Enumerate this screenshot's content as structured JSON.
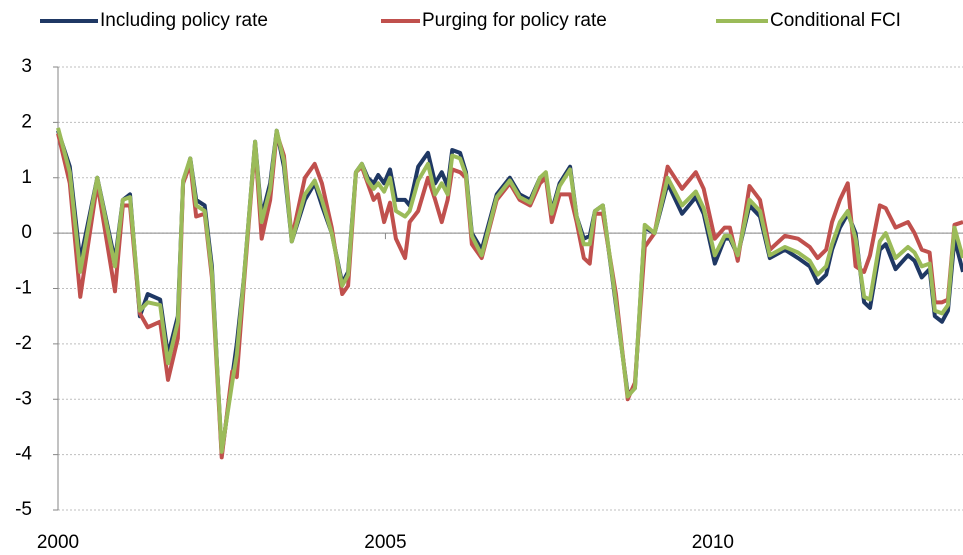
{
  "chart_data": {
    "type": "line",
    "x": [
      2000.0,
      2000.18,
      2000.34,
      2000.6,
      2000.87,
      2000.99,
      2001.1,
      2001.25,
      2001.37,
      2001.56,
      2001.68,
      2001.83,
      2001.91,
      2002.02,
      2002.11,
      2002.24,
      2002.35,
      2002.5,
      2002.66,
      2002.73,
      2002.84,
      2003.01,
      2003.11,
      2003.24,
      2003.34,
      2003.45,
      2003.57,
      2003.77,
      2003.92,
      2004.03,
      2004.18,
      2004.34,
      2004.43,
      2004.55,
      2004.64,
      2004.73,
      2004.82,
      2004.89,
      2004.98,
      2005.07,
      2005.16,
      2005.3,
      2005.37,
      2005.5,
      2005.65,
      2005.76,
      2005.86,
      2005.95,
      2006.02,
      2006.14,
      2006.23,
      2006.32,
      2006.47,
      2006.7,
      2006.9,
      2007.05,
      2007.21,
      2007.36,
      2007.45,
      2007.54,
      2007.66,
      2007.82,
      2007.92,
      2008.03,
      2008.12,
      2008.2,
      2008.32,
      2008.52,
      2008.7,
      2008.81,
      2008.96,
      2009.11,
      2009.31,
      2009.53,
      2009.74,
      2009.86,
      2010.03,
      2010.18,
      2010.26,
      2010.38,
      2010.56,
      2010.72,
      2010.87,
      2011.1,
      2011.3,
      2011.48,
      2011.6,
      2011.73,
      2011.82,
      2011.94,
      2012.06,
      2012.18,
      2012.31,
      2012.4,
      2012.55,
      2012.64,
      2012.79,
      2012.98,
      2013.08,
      2013.19,
      2013.31,
      2013.39,
      2013.5,
      2013.59,
      2013.69,
      2013.82
    ],
    "series": [
      {
        "name": "Including policy rate",
        "color": "#1f3864",
        "values": [
          1.85,
          1.2,
          -0.5,
          1.0,
          -0.5,
          0.6,
          0.7,
          -1.5,
          -1.1,
          -1.2,
          -2.2,
          -1.5,
          0.9,
          1.35,
          0.6,
          0.5,
          -0.6,
          -4.0,
          -2.6,
          -2.0,
          -0.8,
          1.65,
          0.3,
          0.9,
          1.85,
          1.2,
          -0.15,
          0.6,
          0.9,
          0.5,
          0.0,
          -0.9,
          -0.7,
          1.1,
          1.25,
          1.0,
          0.9,
          1.05,
          0.9,
          1.15,
          0.6,
          0.6,
          0.5,
          1.2,
          1.45,
          0.9,
          1.1,
          0.85,
          1.5,
          1.45,
          1.1,
          0.0,
          -0.3,
          0.7,
          1.0,
          0.7,
          0.6,
          1.0,
          1.0,
          0.4,
          0.9,
          1.2,
          0.3,
          -0.1,
          -0.05,
          0.4,
          0.5,
          -1.3,
          -2.9,
          -2.8,
          0.1,
          0.0,
          0.9,
          0.35,
          0.65,
          0.35,
          -0.55,
          -0.1,
          -0.1,
          -0.4,
          0.5,
          0.3,
          -0.45,
          -0.3,
          -0.45,
          -0.6,
          -0.9,
          -0.75,
          -0.3,
          0.1,
          0.35,
          0.0,
          -1.25,
          -1.35,
          -0.3,
          -0.2,
          -0.65,
          -0.4,
          -0.5,
          -0.8,
          -0.65,
          -1.5,
          -1.6,
          -1.4,
          -0.1,
          -0.7
        ]
      },
      {
        "name": "Purging for policy rate",
        "color": "#c0504d",
        "values": [
          1.8,
          0.9,
          -1.15,
          0.9,
          -1.05,
          0.5,
          0.5,
          -1.45,
          -1.7,
          -1.6,
          -2.65,
          -1.9,
          0.9,
          1.25,
          0.3,
          0.35,
          -0.8,
          -4.05,
          -2.5,
          -2.6,
          -0.9,
          1.6,
          -0.1,
          0.6,
          1.8,
          1.4,
          -0.1,
          1.0,
          1.25,
          0.9,
          0.1,
          -1.1,
          -0.95,
          1.1,
          1.2,
          0.9,
          0.6,
          0.7,
          0.2,
          0.55,
          -0.1,
          -0.45,
          0.2,
          0.4,
          1.0,
          0.6,
          0.2,
          0.6,
          1.15,
          1.1,
          1.0,
          -0.2,
          -0.45,
          0.6,
          0.9,
          0.6,
          0.5,
          0.9,
          1.0,
          0.2,
          0.7,
          0.7,
          0.2,
          -0.45,
          -0.55,
          0.35,
          0.35,
          -1.1,
          -3.0,
          -2.7,
          -0.25,
          0.0,
          1.2,
          0.8,
          1.1,
          0.8,
          -0.1,
          0.1,
          0.1,
          -0.5,
          0.85,
          0.6,
          -0.3,
          -0.05,
          -0.1,
          -0.25,
          -0.45,
          -0.3,
          0.2,
          0.6,
          0.9,
          -0.6,
          -0.7,
          -0.4,
          0.5,
          0.45,
          0.1,
          0.2,
          0.0,
          -0.3,
          -0.35,
          -1.25,
          -1.25,
          -1.2,
          0.15,
          0.2
        ]
      },
      {
        "name": "Conditional FCI",
        "color": "#9bbb59",
        "values": [
          1.9,
          1.1,
          -0.7,
          1.0,
          -0.6,
          0.6,
          0.65,
          -1.4,
          -1.25,
          -1.3,
          -2.35,
          -1.6,
          0.95,
          1.35,
          0.5,
          0.4,
          -0.7,
          -3.95,
          -2.7,
          -2.2,
          -0.8,
          1.65,
          0.2,
          0.8,
          1.85,
          1.3,
          -0.15,
          0.7,
          0.95,
          0.6,
          0.0,
          -0.95,
          -0.75,
          1.1,
          1.25,
          0.95,
          0.8,
          0.9,
          0.75,
          1.0,
          0.4,
          0.3,
          0.4,
          0.95,
          1.25,
          0.7,
          0.9,
          0.7,
          1.4,
          1.35,
          1.05,
          -0.05,
          -0.4,
          0.65,
          0.95,
          0.65,
          0.55,
          1.0,
          1.1,
          0.35,
          0.85,
          1.15,
          0.3,
          -0.2,
          -0.2,
          0.4,
          0.5,
          -1.25,
          -2.95,
          -2.8,
          0.15,
          0.0,
          1.0,
          0.5,
          0.75,
          0.45,
          -0.4,
          -0.05,
          -0.05,
          -0.4,
          0.6,
          0.4,
          -0.4,
          -0.25,
          -0.35,
          -0.5,
          -0.75,
          -0.6,
          -0.2,
          0.2,
          0.4,
          -0.1,
          -1.15,
          -1.2,
          -0.15,
          0.0,
          -0.45,
          -0.25,
          -0.35,
          -0.6,
          -0.55,
          -1.4,
          -1.45,
          -1.3,
          0.1,
          -0.45
        ]
      }
    ],
    "xlim": [
      2000,
      2013.82
    ],
    "xticks": [
      2000,
      2005,
      2010
    ],
    "ylim": [
      -5,
      3
    ],
    "yticks": [
      -5,
      -4,
      -3,
      -2,
      -1,
      0,
      1,
      2,
      3
    ],
    "grid": true,
    "legend": "top"
  }
}
